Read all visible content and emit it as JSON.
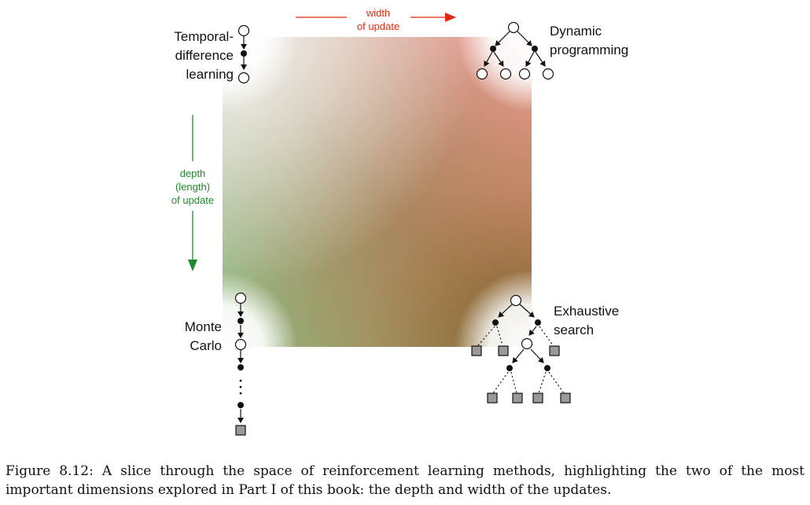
{
  "diagram": {
    "width_axis": {
      "line1": "width",
      "line2": "of update",
      "color": "#e02a10"
    },
    "depth_axis": {
      "line1": "depth",
      "line2": "(length)",
      "line3": "of update",
      "color": "#1f8a2a"
    },
    "corners": {
      "td": {
        "line1": "Temporal-",
        "line2": "difference",
        "line3": "learning"
      },
      "dp": {
        "line1": "Dynamic",
        "line2": "programming"
      },
      "mc": {
        "line1": "Monte",
        "line2": "Carlo"
      },
      "es": {
        "line1": "Exhaustive",
        "line2": "search"
      }
    },
    "gradient_colors": {
      "top_right": "#f5a3a0",
      "bottom_left": "#8cc98e",
      "bottom_right": "#7a5a22",
      "top_left": "#ffffff"
    }
  },
  "caption": "Figure 8.12: A slice through the space of reinforcement learning methods, highlighting the two of the most important dimensions explored in Part I of this book: the depth and width of the updates."
}
